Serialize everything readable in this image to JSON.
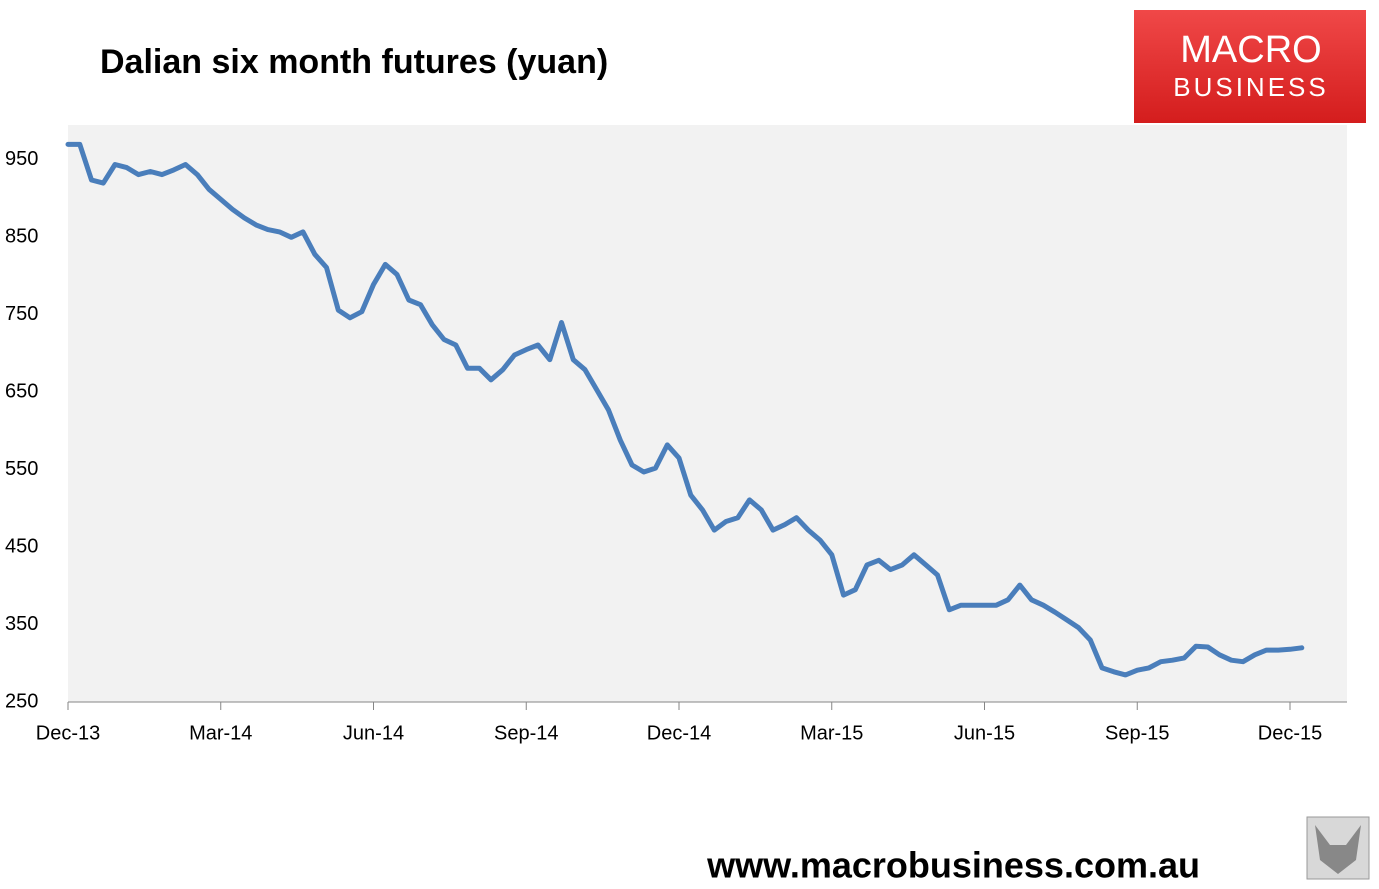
{
  "chart_data": {
    "type": "line",
    "title": "Dalian six month futures (yuan)",
    "categories": [
      "Dec-13",
      null,
      null,
      null,
      null,
      null,
      null,
      null,
      null,
      null,
      null,
      null,
      null,
      "Mar-14",
      null,
      null,
      null,
      null,
      null,
      null,
      null,
      null,
      null,
      null,
      null,
      null,
      "Jun-14",
      null,
      null,
      null,
      null,
      null,
      null,
      null,
      null,
      null,
      null,
      null,
      null,
      "Sep-14",
      null,
      null,
      null,
      null,
      null,
      null,
      null,
      null,
      null,
      null,
      null,
      null,
      "Dec-14",
      null,
      null,
      null,
      null,
      null,
      null,
      null,
      null,
      null,
      null,
      null,
      null,
      "Mar-15",
      null,
      null,
      null,
      null,
      null,
      null,
      null,
      null,
      null,
      null,
      null,
      null,
      "Jun-15",
      null,
      null,
      null,
      null,
      null,
      null,
      null,
      null,
      null,
      null,
      null,
      null,
      "Sep-15",
      null,
      null,
      null,
      null,
      null,
      null,
      null,
      null,
      null,
      null,
      null,
      null,
      "Dec-15",
      null
    ],
    "values": [
      970,
      970,
      924,
      920,
      944,
      940,
      931,
      935,
      931,
      937,
      944,
      931,
      912,
      899,
      886,
      875,
      866,
      860,
      857,
      850,
      857,
      828,
      811,
      756,
      746,
      754,
      789,
      815,
      802,
      769,
      763,
      737,
      718,
      711,
      681,
      681,
      666,
      679,
      698,
      705,
      711,
      692,
      740,
      692,
      679,
      653,
      627,
      588,
      556,
      547,
      552,
      582,
      565,
      517,
      498,
      472,
      483,
      488,
      511,
      498,
      472,
      479,
      488,
      472,
      459,
      440,
      388,
      395,
      427,
      433,
      421,
      427,
      440,
      427,
      414,
      369,
      375,
      375,
      375,
      375,
      382,
      401,
      382,
      375,
      366,
      356,
      346,
      330,
      294,
      289,
      285,
      291,
      294,
      302,
      304,
      307,
      322,
      321,
      311,
      304,
      302,
      311,
      317,
      317,
      318,
      320
    ],
    "color": "#4a7ebb",
    "ylim": [
      250,
      995
    ],
    "yticks": [
      250,
      350,
      450,
      550,
      650,
      750,
      850,
      950
    ]
  },
  "logo": {
    "line1": "MACRO",
    "line2": "BUSINESS"
  },
  "footer": "www.macrobusiness.com.au"
}
